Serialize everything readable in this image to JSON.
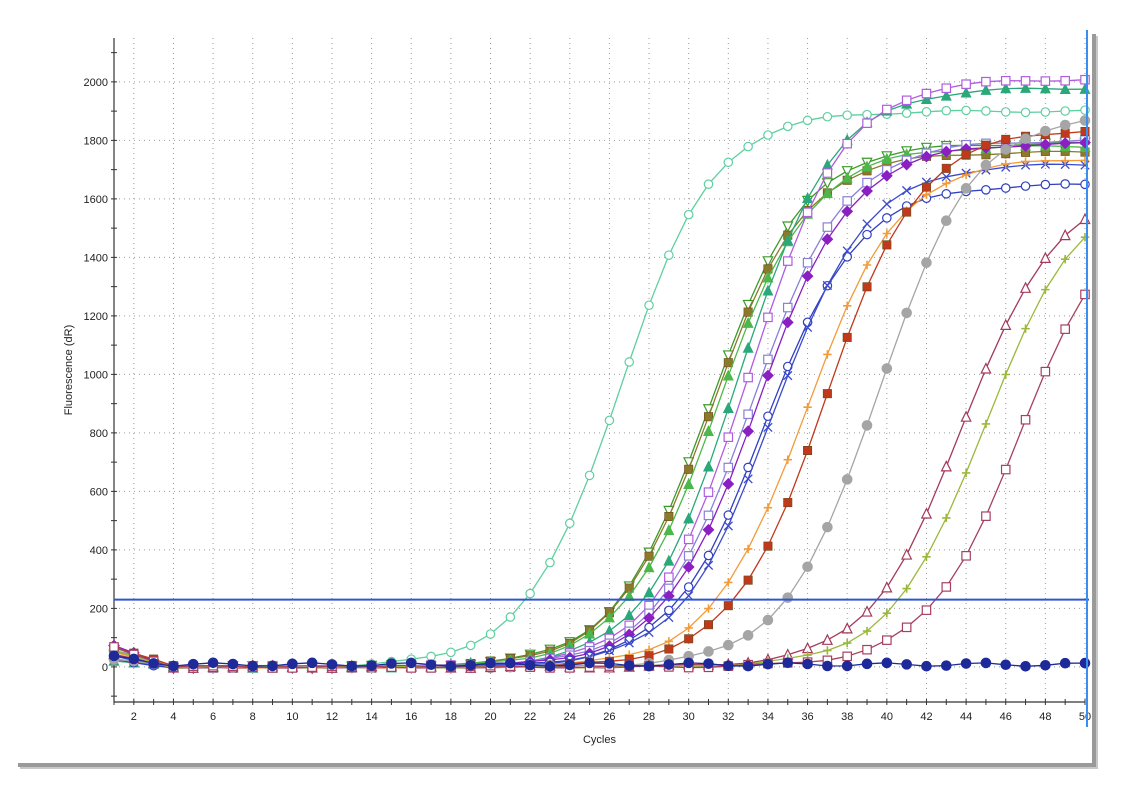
{
  "chart_data": {
    "type": "line",
    "xlabel": "Cycles",
    "ylabel": "Fluorescence (dR)",
    "xlim": [
      1,
      50
    ],
    "ylim": [
      -120,
      2150
    ],
    "x_ticks": [
      2,
      4,
      6,
      8,
      10,
      12,
      14,
      16,
      18,
      20,
      22,
      24,
      26,
      28,
      30,
      32,
      34,
      36,
      38,
      40,
      42,
      44,
      46,
      48,
      50
    ],
    "y_ticks": [
      0,
      200,
      400,
      600,
      800,
      1000,
      1200,
      1400,
      1600,
      1800,
      2000
    ],
    "grid": true,
    "threshold": 230,
    "threshold_color": "#2f55d4",
    "series": [
      {
        "color": "#5fcf9f",
        "marker": "open-circle",
        "ct": 21.8,
        "plateau": 1900
      },
      {
        "color": "#3c9a2a",
        "marker": "open-triangle-down",
        "ct": 26.5,
        "plateau": 1790
      },
      {
        "color": "#8b7a2a",
        "marker": "filled-square",
        "ct": 26.6,
        "plateau": 1760
      },
      {
        "color": "#4cb84a",
        "marker": "filled-triangle",
        "ct": 26.9,
        "plateau": 1780
      },
      {
        "color": "#2aa87a",
        "marker": "filled-triangle",
        "ct": 27.7,
        "plateau": 1980
      },
      {
        "color": "#b05ce0",
        "marker": "open-square",
        "ct": 28.2,
        "plateau": 2010
      },
      {
        "color": "#8a7fd8",
        "marker": "open-square",
        "ct": 28.6,
        "plateau": 1800
      },
      {
        "color": "#8a1fc2",
        "marker": "filled-diamond",
        "ct": 28.9,
        "plateau": 1790
      },
      {
        "color": "#2f3fbf",
        "marker": "open-circle",
        "ct": 29.5,
        "plateau": 1650
      },
      {
        "color": "#3a4acc",
        "marker": "x",
        "ct": 29.8,
        "plateau": 1720
      },
      {
        "color": "#f29b3a",
        "marker": "plus",
        "ct": 31.4,
        "plateau": 1740
      },
      {
        "color": "#c0391b",
        "marker": "filled-square",
        "ct": 32.3,
        "plateau": 1840
      },
      {
        "color": "#a5a5a5",
        "marker": "filled-circle",
        "ct": 34.9,
        "plateau": 1890
      },
      {
        "color": "#a33a5a",
        "marker": "open-triangle",
        "ct": 39.5,
        "plateau": 1640
      },
      {
        "color": "#9ab83a",
        "marker": "plus",
        "ct": 40.6,
        "plateau": 1640
      },
      {
        "color": "#a64060",
        "marker": "open-square",
        "ct": 42.5,
        "plateau": 1600
      },
      {
        "color": "#1f2a9a",
        "marker": "filled-circle",
        "ct": null,
        "plateau": 0
      }
    ]
  }
}
